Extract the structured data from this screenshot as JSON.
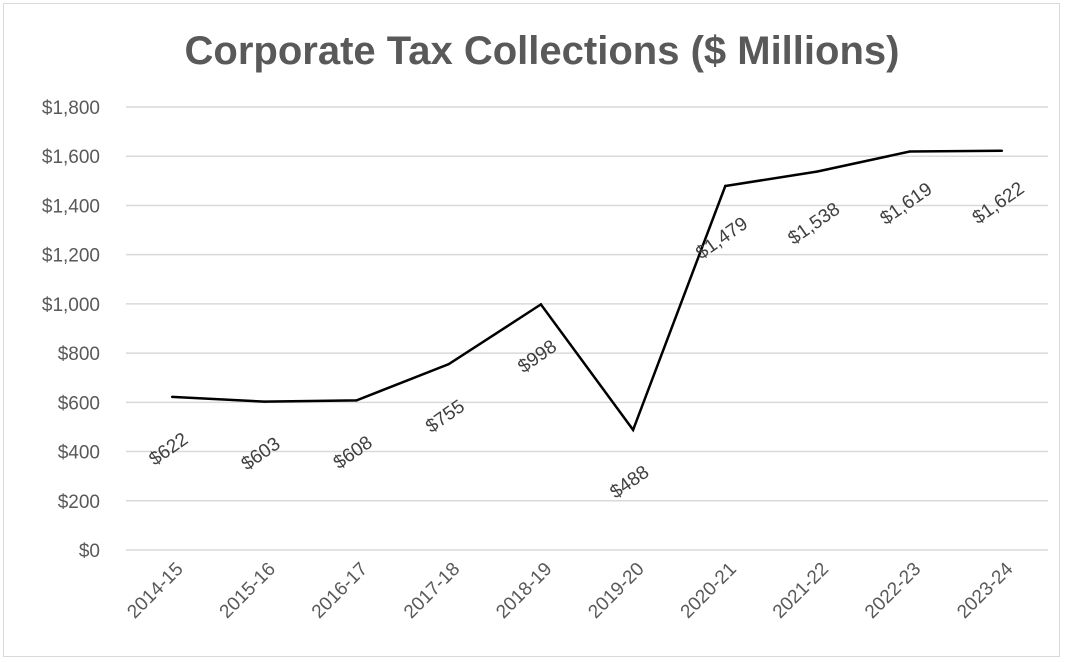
{
  "chart_data": {
    "type": "line",
    "title": "Corporate Tax Collections ($ Millions)",
    "xlabel": "",
    "ylabel": "",
    "categories": [
      "2014-15",
      "2015-16",
      "2016-17",
      "2017-18",
      "2018-19",
      "2019-20",
      "2020-21",
      "2021-22",
      "2022-23",
      "2023-24"
    ],
    "values": [
      622,
      603,
      608,
      755,
      998,
      488,
      1479,
      1538,
      1619,
      1622
    ],
    "data_labels": [
      "$622",
      "$603",
      "$608",
      "$755",
      "$998",
      "$488",
      "$1,479",
      "$1,538",
      "$1,619",
      "$1,622"
    ],
    "ylim": [
      0,
      1800
    ],
    "y_ticks": [
      0,
      200,
      400,
      600,
      800,
      1000,
      1200,
      1400,
      1600,
      1800
    ],
    "y_tick_labels": [
      "$0",
      "$200",
      "$400",
      "$600",
      "$800",
      "$1,000",
      "$1,200",
      "$1,400",
      "$1,600",
      "$1,800"
    ],
    "grid": true,
    "legend": "none",
    "line_color": "#000000",
    "gridline_color": "#d9d9d9"
  }
}
